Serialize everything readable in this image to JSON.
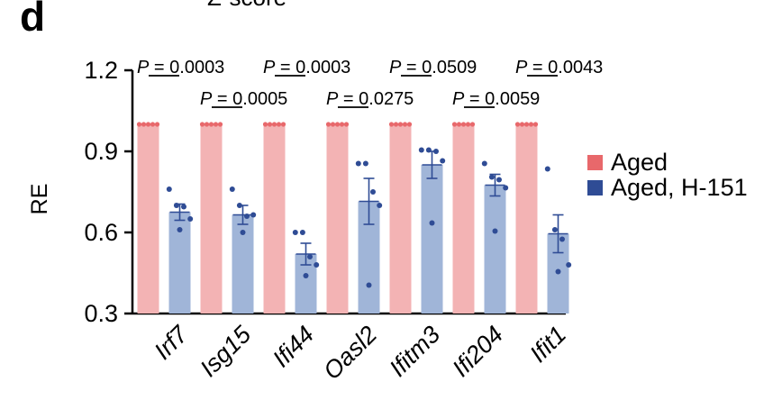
{
  "panel_label": "d",
  "top_clipped_text": "Z-score",
  "chart_data": {
    "type": "bar",
    "ylabel": "RE",
    "ylim": [
      0.3,
      1.2
    ],
    "yticks": [
      "0.3",
      "0.6",
      "0.9",
      "1.2"
    ],
    "ytick_values": [
      0.3,
      0.6,
      0.9,
      1.2
    ],
    "categories": [
      "Irf7",
      "Isg15",
      "Ifi44",
      "Oasl2",
      "Ifitm3",
      "Ifi204",
      "Ifit1"
    ],
    "series": [
      {
        "name": "Aged",
        "color": "#e8686b",
        "bar_color": "#f3b3b4",
        "values": [
          1.0,
          1.0,
          1.0,
          1.0,
          1.0,
          1.0,
          1.0
        ],
        "points": [
          [
            1,
            1,
            1,
            1,
            1
          ],
          [
            1,
            1,
            1,
            1,
            1
          ],
          [
            1,
            1,
            1,
            1,
            1
          ],
          [
            1,
            1,
            1,
            1,
            1
          ],
          [
            1,
            1,
            1,
            1,
            1
          ],
          [
            1,
            1,
            1,
            1,
            1
          ],
          [
            1,
            1,
            1,
            1,
            1
          ]
        ]
      },
      {
        "name": "Aged, H-151",
        "color": "#2f4c95",
        "bar_color": "#a0b5d8",
        "values": [
          0.675,
          0.665,
          0.52,
          0.715,
          0.85,
          0.775,
          0.595
        ],
        "errors": [
          0.03,
          0.035,
          0.04,
          0.085,
          0.05,
          0.04,
          0.07
        ],
        "points": [
          [
            0.76,
            0.7,
            0.695,
            0.65,
            0.61
          ],
          [
            0.76,
            0.7,
            0.66,
            0.665,
            0.6
          ],
          [
            0.6,
            0.6,
            0.51,
            0.48,
            0.44
          ],
          [
            0.855,
            0.855,
            0.75,
            0.7,
            0.405
          ],
          [
            0.905,
            0.905,
            0.9,
            0.865,
            0.635
          ],
          [
            0.855,
            0.805,
            0.795,
            0.765,
            0.605
          ],
          [
            0.835,
            0.61,
            0.575,
            0.48,
            0.455
          ]
        ]
      }
    ],
    "annotations": [
      {
        "label": "P",
        "text": " = 0.0003",
        "group": 0,
        "row": "top"
      },
      {
        "label": "P",
        "text": " = 0.0005",
        "group": 1,
        "row": "bottom"
      },
      {
        "label": "P",
        "text": " = 0.0003",
        "group": 2,
        "row": "top"
      },
      {
        "label": "P",
        "text": " = 0.0275",
        "group": 3,
        "row": "bottom"
      },
      {
        "label": "P",
        "text": " = 0.0509",
        "group": 4,
        "row": "top"
      },
      {
        "label": "P",
        "text": " = 0.0059",
        "group": 5,
        "row": "bottom"
      },
      {
        "label": "P",
        "text": " = 0.0043",
        "group": 6,
        "row": "top"
      }
    ],
    "legend": {
      "placement": "right",
      "entries": [
        "Aged",
        "Aged, H-151"
      ]
    },
    "grid": false
  }
}
